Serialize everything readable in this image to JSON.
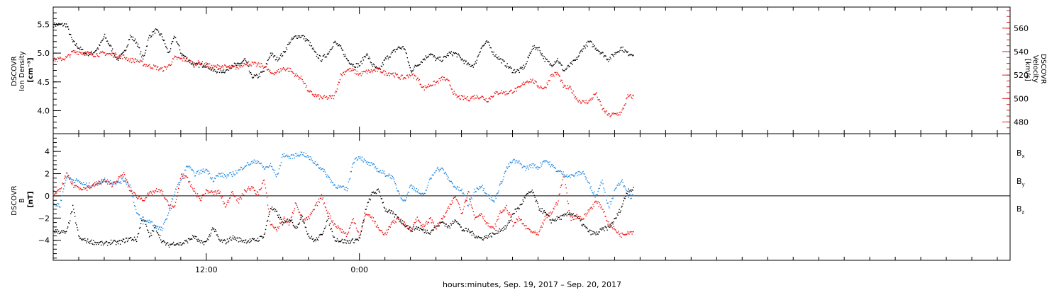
{
  "chart_data": [
    {
      "type": "scatter",
      "panel": "ion-density-velocity",
      "ylabel_lines": [
        "DSCOVR",
        "Ion Density",
        "[cm⁻³]"
      ],
      "ylabel_right_lines": [
        "DSCOVR",
        "Velocity",
        "[km/s]"
      ],
      "ylim": [
        3.6,
        5.8
      ],
      "yticks": [
        4.0,
        4.5,
        5.0,
        5.5
      ],
      "ytick_labels": [
        "4.0",
        "4.5",
        "5.0",
        "5.5"
      ],
      "ylim_right": [
        470,
        578
      ],
      "yticks_right": [
        480,
        500,
        520,
        540,
        560
      ],
      "ytick_labels_right": [
        "480",
        "500",
        "520",
        "540",
        "560"
      ],
      "series": [
        {
          "axis": "left",
          "color": "#000000",
          "x": [
            0.0,
            0.5,
            1.0,
            1.5,
            2.0,
            2.5,
            3.0,
            3.5,
            4.0,
            4.5,
            5.0,
            5.5,
            6.0,
            6.5,
            7.0,
            7.5,
            8.0,
            8.5,
            9.0,
            9.5,
            10.0,
            10.5,
            11.0,
            11.5,
            12.0,
            12.5,
            13.0,
            13.5,
            14.0,
            14.5,
            15.0,
            15.5,
            16.0,
            16.5,
            17.0,
            17.5,
            18.0,
            18.5,
            19.0,
            19.5,
            20.0,
            20.5,
            21.0,
            21.5,
            22.0,
            22.5,
            23.0,
            23.5,
            24.0,
            24.5,
            25.0,
            25.5,
            26.0,
            26.5,
            27.0,
            27.5,
            28.0,
            28.5,
            29.0,
            29.5,
            30.0,
            30.5,
            31.0,
            31.5,
            32.0,
            32.5,
            33.0,
            33.5,
            34.0,
            34.5,
            35.0,
            35.5,
            36.0,
            36.5,
            37.0,
            37.5,
            38.0,
            38.5,
            39.0,
            39.5,
            40.0,
            40.5,
            41.0,
            41.5,
            42.0,
            42.5,
            43.0,
            43.5,
            44.0,
            44.5,
            45.0
          ],
          "y": [
            5.5,
            5.5,
            5.5,
            5.2,
            5.1,
            5.0,
            5.0,
            5.1,
            5.3,
            5.1,
            4.9,
            5.0,
            5.3,
            5.2,
            4.9,
            5.3,
            5.4,
            5.3,
            5.0,
            5.3,
            5.0,
            4.9,
            4.8,
            4.8,
            4.8,
            4.7,
            4.7,
            4.7,
            4.8,
            4.8,
            4.9,
            4.6,
            4.6,
            4.7,
            5.0,
            4.9,
            5.0,
            5.2,
            5.3,
            5.3,
            5.2,
            5.0,
            4.9,
            5.0,
            5.2,
            5.1,
            4.9,
            4.8,
            4.8,
            5.0,
            4.8,
            4.7,
            4.9,
            5.0,
            5.1,
            5.1,
            4.7,
            4.8,
            4.9,
            5.0,
            4.9,
            4.9,
            5.0,
            5.0,
            4.9,
            4.8,
            4.8,
            5.1,
            5.2,
            5.0,
            4.9,
            4.8,
            4.7,
            4.7,
            4.8,
            5.1,
            5.1,
            4.9,
            4.8,
            4.9,
            4.7,
            4.8,
            4.9,
            5.1,
            5.2,
            5.1,
            5.0,
            4.9,
            5.0,
            5.1,
            5.0
          ]
        },
        {
          "axis": "right",
          "color": "#ee1111",
          "x": [
            0.0,
            0.5,
            1.0,
            1.5,
            2.0,
            2.5,
            3.0,
            3.5,
            4.0,
            4.5,
            5.0,
            5.5,
            6.0,
            6.5,
            7.0,
            7.5,
            8.0,
            8.5,
            9.0,
            9.5,
            10.0,
            10.5,
            11.0,
            11.5,
            12.0,
            12.5,
            13.0,
            13.5,
            14.0,
            14.5,
            15.0,
            15.5,
            16.0,
            16.5,
            17.0,
            17.5,
            18.0,
            18.5,
            19.0,
            19.5,
            20.0,
            20.5,
            21.0,
            21.5,
            22.0,
            22.5,
            23.0,
            23.5,
            24.0,
            24.5,
            25.0,
            25.5,
            26.0,
            26.5,
            27.0,
            27.5,
            28.0,
            28.5,
            29.0,
            29.5,
            30.0,
            30.5,
            31.0,
            31.5,
            32.0,
            32.5,
            33.0,
            33.5,
            34.0,
            34.5,
            35.0,
            35.5,
            36.0,
            36.5,
            37.0,
            37.5,
            38.0,
            38.5,
            39.0,
            39.5,
            40.0,
            40.5,
            41.0,
            41.5,
            42.0,
            42.5,
            43.0,
            43.5,
            44.0,
            44.5,
            45.0
          ],
          "y": [
            533,
            534,
            535,
            540,
            540,
            539,
            538,
            538,
            539,
            538,
            537,
            536,
            533,
            533,
            530,
            528,
            527,
            525,
            528,
            535,
            534,
            533,
            530,
            531,
            529,
            527,
            528,
            527,
            527,
            527,
            531,
            530,
            529,
            528,
            522,
            523,
            526,
            525,
            520,
            517,
            506,
            503,
            501,
            501,
            502,
            520,
            525,
            524,
            521,
            523,
            524,
            525,
            522,
            522,
            519,
            518,
            521,
            518,
            509,
            512,
            514,
            518,
            514,
            502,
            501,
            500,
            502,
            502,
            499,
            504,
            506,
            505,
            507,
            509,
            515,
            516,
            511,
            509,
            520,
            522,
            510,
            509,
            500,
            497,
            498,
            505,
            492,
            486,
            487,
            488,
            502
          ]
        }
      ]
    },
    {
      "type": "scatter",
      "panel": "magnetic-field",
      "ylabel_lines": [
        "DSCOVR",
        "B",
        "[nT]"
      ],
      "ylim": [
        -5.8,
        5.6
      ],
      "yticks": [
        -4,
        -2,
        0,
        2,
        4
      ],
      "ytick_labels": [
        "−4",
        "−2",
        "0",
        "2",
        "4"
      ],
      "legend_position": "right",
      "series": [
        {
          "name": "B",
          "subscript": "x",
          "color": "#000000",
          "x": [
            0.0,
            0.5,
            1.0,
            1.5,
            2.0,
            2.5,
            3.0,
            3.5,
            4.0,
            4.5,
            5.0,
            5.5,
            6.0,
            6.5,
            7.0,
            7.5,
            8.0,
            8.5,
            9.0,
            9.5,
            10.0,
            10.5,
            11.0,
            11.5,
            12.0,
            12.5,
            13.0,
            13.5,
            14.0,
            14.5,
            15.0,
            15.5,
            16.0,
            16.5,
            17.0,
            17.5,
            18.0,
            18.5,
            19.0,
            19.5,
            20.0,
            20.5,
            21.0,
            21.5,
            22.0,
            22.5,
            23.0,
            23.5,
            24.0,
            24.5,
            25.0,
            25.5,
            26.0,
            26.5,
            27.0,
            27.5,
            28.0,
            28.5,
            29.0,
            29.5,
            30.0,
            30.5,
            31.0,
            31.5,
            32.0,
            32.5,
            33.0,
            33.5,
            34.0,
            34.5,
            35.0,
            35.5,
            36.0,
            36.5,
            37.0,
            37.5,
            38.0,
            38.5,
            39.0,
            39.5,
            40.0,
            40.5,
            41.0,
            41.5,
            42.0,
            42.5,
            43.0,
            43.5,
            44.0,
            44.5,
            45.0
          ],
          "y": [
            -3.1,
            -3.2,
            -3.3,
            -1.0,
            -3.8,
            -4.0,
            -4.1,
            -4.2,
            -4.3,
            -4.1,
            -4.2,
            -4.0,
            -3.8,
            -3.9,
            -1.8,
            -3.6,
            -2.8,
            -4.1,
            -4.4,
            -4.2,
            -4.3,
            -4.0,
            -3.6,
            -4.2,
            -4.1,
            -2.8,
            -4.0,
            -4.1,
            -3.7,
            -3.9,
            -4.0,
            -4.0,
            -3.9,
            -3.5,
            -1.0,
            -1.5,
            -2.5,
            -2.0,
            -2.8,
            -1.8,
            -3.6,
            -4.0,
            -3.5,
            -2.0,
            -3.8,
            -4.0,
            -4.1,
            -4.0,
            -3.8,
            -1.0,
            0.3,
            0.5,
            -1.2,
            -1.5,
            -2.0,
            -2.5,
            -3.0,
            -2.8,
            -3.1,
            -3.2,
            -2.7,
            -2.3,
            -2.8,
            -2.0,
            -3.0,
            -3.1,
            -3.5,
            -3.8,
            -3.6,
            -3.4,
            -3.0,
            -2.8,
            -1.5,
            -1.0,
            0.0,
            0.5,
            -1.0,
            -1.5,
            -2.2,
            -2.0,
            -1.8,
            -1.5,
            -1.8,
            -2.6,
            -3.2,
            -3.4,
            -3.0,
            -2.8,
            -2.1,
            -1.0,
            0.6
          ]
        },
        {
          "name": "B",
          "subscript": "y",
          "color": "#1e88e5",
          "x": [
            0.0,
            0.5,
            1.0,
            1.5,
            2.0,
            2.5,
            3.0,
            3.5,
            4.0,
            4.5,
            5.0,
            5.5,
            6.0,
            6.5,
            7.0,
            7.5,
            8.0,
            8.5,
            9.0,
            9.5,
            10.0,
            10.5,
            11.0,
            11.5,
            12.0,
            12.5,
            13.0,
            13.5,
            14.0,
            14.5,
            15.0,
            15.5,
            16.0,
            16.5,
            17.0,
            17.5,
            18.0,
            18.5,
            19.0,
            19.5,
            20.0,
            20.5,
            21.0,
            21.5,
            22.0,
            22.5,
            23.0,
            23.5,
            24.0,
            24.5,
            25.0,
            25.5,
            26.0,
            26.5,
            27.0,
            27.5,
            28.0,
            28.5,
            29.0,
            29.5,
            30.0,
            30.5,
            31.0,
            31.5,
            32.0,
            32.5,
            33.0,
            33.5,
            34.0,
            34.5,
            35.0,
            35.5,
            36.0,
            36.5,
            37.0,
            37.5,
            38.0,
            38.5,
            39.0,
            39.5,
            40.0,
            40.5,
            41.0,
            41.5,
            42.0,
            42.5,
            43.0,
            43.5,
            44.0,
            44.5,
            45.0
          ],
          "y": [
            -0.7,
            -0.8,
            1.8,
            1.5,
            1.3,
            1.0,
            1.0,
            1.2,
            1.5,
            1.3,
            1.2,
            1.5,
            1.0,
            -1.5,
            -2.3,
            -2.2,
            -2.7,
            -3.0,
            -1.5,
            0.5,
            1.5,
            2.8,
            2.0,
            2.2,
            2.4,
            1.5,
            2.0,
            1.8,
            2.0,
            2.3,
            2.8,
            3.0,
            3.2,
            2.5,
            2.8,
            1.8,
            3.8,
            3.5,
            3.7,
            3.9,
            3.5,
            3.0,
            2.5,
            1.8,
            1.0,
            0.8,
            0.6,
            3.2,
            3.6,
            3.0,
            2.8,
            2.3,
            2.0,
            1.8,
            0.5,
            -0.5,
            1.0,
            0.5,
            0.0,
            1.5,
            2.5,
            2.4,
            1.5,
            0.8,
            0.5,
            -0.8,
            0.5,
            1.0,
            0.2,
            -0.5,
            1.0,
            2.5,
            3.2,
            3.0,
            2.5,
            2.8,
            2.6,
            3.3,
            2.8,
            2.3,
            2.0,
            1.8,
            2.0,
            2.2,
            1.0,
            0.0,
            1.5,
            -1.0,
            0.5,
            1.5,
            0.0
          ]
        },
        {
          "name": "B",
          "subscript": "z",
          "color": "#ee1111",
          "x": [
            0.0,
            0.5,
            1.0,
            1.5,
            2.0,
            2.5,
            3.0,
            3.5,
            4.0,
            4.5,
            5.0,
            5.5,
            6.0,
            6.5,
            7.0,
            7.5,
            8.0,
            8.5,
            9.0,
            9.5,
            10.0,
            10.5,
            11.0,
            11.5,
            12.0,
            12.5,
            13.0,
            13.5,
            14.0,
            14.5,
            15.0,
            15.5,
            16.0,
            16.5,
            17.0,
            17.5,
            18.0,
            18.5,
            19.0,
            19.5,
            20.0,
            20.5,
            21.0,
            21.5,
            22.0,
            22.5,
            23.0,
            23.5,
            24.0,
            24.5,
            25.0,
            25.5,
            26.0,
            26.5,
            27.0,
            27.5,
            28.0,
            28.5,
            29.0,
            29.5,
            30.0,
            30.5,
            31.0,
            31.5,
            32.0,
            32.5,
            33.0,
            33.5,
            34.0,
            34.5,
            35.0,
            35.5,
            36.0,
            36.5,
            37.0,
            37.5,
            38.0,
            38.5,
            39.0,
            39.5,
            40.0,
            40.5,
            41.0,
            41.5,
            42.0,
            42.5,
            43.0,
            43.5,
            44.0,
            44.5,
            45.0
          ],
          "y": [
            0.3,
            0.5,
            2.0,
            1.0,
            0.8,
            0.7,
            0.9,
            1.2,
            1.4,
            1.0,
            1.5,
            2.0,
            0.5,
            0.0,
            -0.3,
            0.2,
            0.5,
            0.4,
            -0.8,
            -1.0,
            2.0,
            1.5,
            0.5,
            -0.3,
            0.5,
            0.3,
            0.4,
            -1.0,
            0.5,
            -0.5,
            0.5,
            0.8,
            0.2,
            1.5,
            -2.5,
            -3.0,
            -2.0,
            -2.5,
            -0.5,
            -2.2,
            -2.0,
            -1.0,
            0.0,
            -1.5,
            -2.5,
            -3.0,
            -3.5,
            -2.0,
            -3.6,
            -1.5,
            -2.0,
            -3.0,
            -3.4,
            -2.5,
            -2.0,
            -2.5,
            -3.0,
            -2.0,
            -2.8,
            -2.0,
            -2.8,
            -2.0,
            -1.0,
            0.0,
            -1.5,
            0.5,
            -2.0,
            -1.5,
            -2.5,
            -3.0,
            -1.5,
            -1.0,
            -2.5,
            -2.0,
            -2.8,
            -3.2,
            -3.5,
            -2.0,
            -1.5,
            -0.5,
            2.0,
            -2.0,
            -1.8,
            -2.0,
            -1.2,
            -0.5,
            -1.0,
            -2.5,
            -3.0,
            -3.5,
            -3.2
          ]
        }
      ]
    }
  ],
  "x_axis": {
    "label": "hours:minutes, Sep. 19, 2017 – Sep. 20, 2017",
    "xlim": [
      0,
      75
    ],
    "major_ticks": [
      12,
      24
    ],
    "major_tick_labels": [
      "12:00",
      "0:00"
    ],
    "minor_tick_step": 2
  }
}
